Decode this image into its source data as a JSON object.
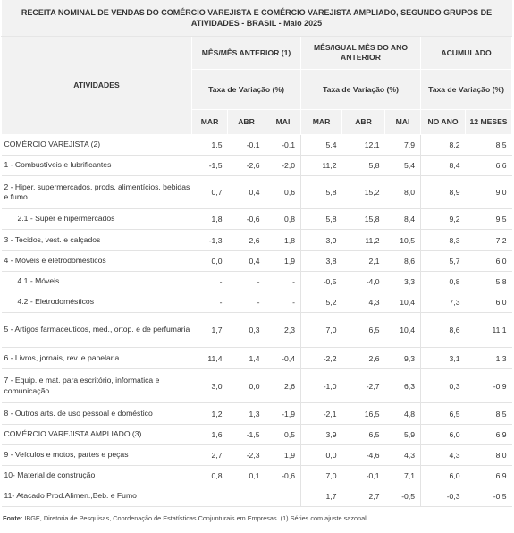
{
  "title": "RECEITA NOMINAL DE VENDAS DO COMÉRCIO VAREJISTA E COMÉRCIO VAREJISTA AMPLIADO, SEGUNDO GRUPOS DE ATIVIDADES - BRASIL - Maio 2025",
  "header": {
    "atividades": "ATIVIDADES",
    "group1": "MÊS/MÊS ANTERIOR (1)",
    "group2": "MÊS/IGUAL MÊS DO ANO ANTERIOR",
    "group3": "ACUMULADO",
    "taxa1": "Taxa de Variação (%)",
    "taxa2": "Taxa de Variação (%)",
    "taxa3": "Taxa de Variação (%)",
    "cols": [
      "MAR",
      "ABR",
      "MAI",
      "MAR",
      "ABR",
      "MAI",
      "NO ANO",
      "12 MESES"
    ]
  },
  "rows": [
    {
      "label": "COMÉRCIO VAREJISTA (2)",
      "values": [
        "1,5",
        "-0,1",
        "-0,1",
        "5,4",
        "12,1",
        "7,9",
        "8,2",
        "8,5"
      ]
    },
    {
      "label": "1 - Combustíveis e lubrificantes",
      "values": [
        "-1,5",
        "-2,6",
        "-2,0",
        "11,2",
        "5,8",
        "5,4",
        "8,4",
        "6,6"
      ]
    },
    {
      "label": "2 - Hiper, supermercados, prods.  alimentícios, bebidas e fumo",
      "values": [
        "0,7",
        "0,4",
        "0,6",
        "5,8",
        "15,2",
        "8,0",
        "8,9",
        "9,0"
      ]
    },
    {
      "label": "2.1 - Super e hipermercados",
      "values": [
        "1,8",
        "-0,6",
        "0,8",
        "5,8",
        "15,8",
        "8,4",
        "9,2",
        "9,5"
      ]
    },
    {
      "label": "3 - Tecidos, vest. e calçados",
      "values": [
        "-1,3",
        "2,6",
        "1,8",
        "3,9",
        "11,2",
        "10,5",
        "8,3",
        "7,2"
      ]
    },
    {
      "label": "4 - Móveis e eletrodomésticos",
      "values": [
        "0,0",
        "0,4",
        "1,9",
        "3,8",
        "2,1",
        "8,6",
        "5,7",
        "6,0"
      ]
    },
    {
      "label": "4.1 - Móveis",
      "values": [
        "-",
        "-",
        "-",
        "-0,5",
        "-4,0",
        "3,3",
        "0,8",
        "5,8"
      ]
    },
    {
      "label": "4.2 - Eletrodomésticos",
      "values": [
        "-",
        "-",
        "-",
        "5,2",
        "4,3",
        "10,4",
        "7,3",
        "6,0"
      ]
    },
    {
      "label": "5 - Artigos farmaceuticos, med., ortop. e de perfumaria",
      "values": [
        "1,7",
        "0,3",
        "2,3",
        "7,0",
        "6,5",
        "10,4",
        "8,6",
        "11,1"
      ]
    },
    {
      "label": "6 - Livros, jornais, rev. e papelaria",
      "values": [
        "11,4",
        "1,4",
        "-0,4",
        "-2,2",
        "2,6",
        "9,3",
        "3,1",
        "1,3"
      ]
    },
    {
      "label": "7 - Equip. e mat. para escritório, informatica e comunicação",
      "values": [
        "3,0",
        "0,0",
        "2,6",
        "-1,0",
        "-2,7",
        "6,3",
        "0,3",
        "-0,9"
      ]
    },
    {
      "label": "8 - Outros arts. de uso pessoal e doméstico",
      "values": [
        "1,2",
        "1,3",
        "-1,9",
        "-2,1",
        "16,5",
        "4,8",
        "6,5",
        "8,5"
      ]
    },
    {
      "label": "COMÉRCIO VAREJISTA AMPLIADO (3)",
      "values": [
        "1,6",
        "-1,5",
        "0,5",
        "3,9",
        "6,5",
        "5,9",
        "6,0",
        "6,9"
      ]
    },
    {
      "label": "9 - Veículos e motos, partes e peças",
      "values": [
        "2,7",
        "-2,3",
        "1,9",
        "0,0",
        "-4,6",
        "4,3",
        "4,3",
        "8,0"
      ]
    },
    {
      "label": "10- Material de construção",
      "values": [
        "0,8",
        "0,1",
        "-0,6",
        "7,0",
        "-0,1",
        "7,1",
        "6,0",
        "6,9"
      ]
    },
    {
      "label": "11- Atacado Prod.Alimen.,Beb. e Fumo",
      "values": [
        "",
        "",
        "",
        "1,7",
        "2,7",
        "-0,5",
        "-0,3",
        "-0,5"
      ]
    }
  ],
  "source": {
    "label": "Fonte:",
    "text": "IBGE, Diretoria de Pesquisas, Coordenação de Estatísticas Conjunturais em Empresas.  (1) Séries com ajuste sazonal."
  }
}
